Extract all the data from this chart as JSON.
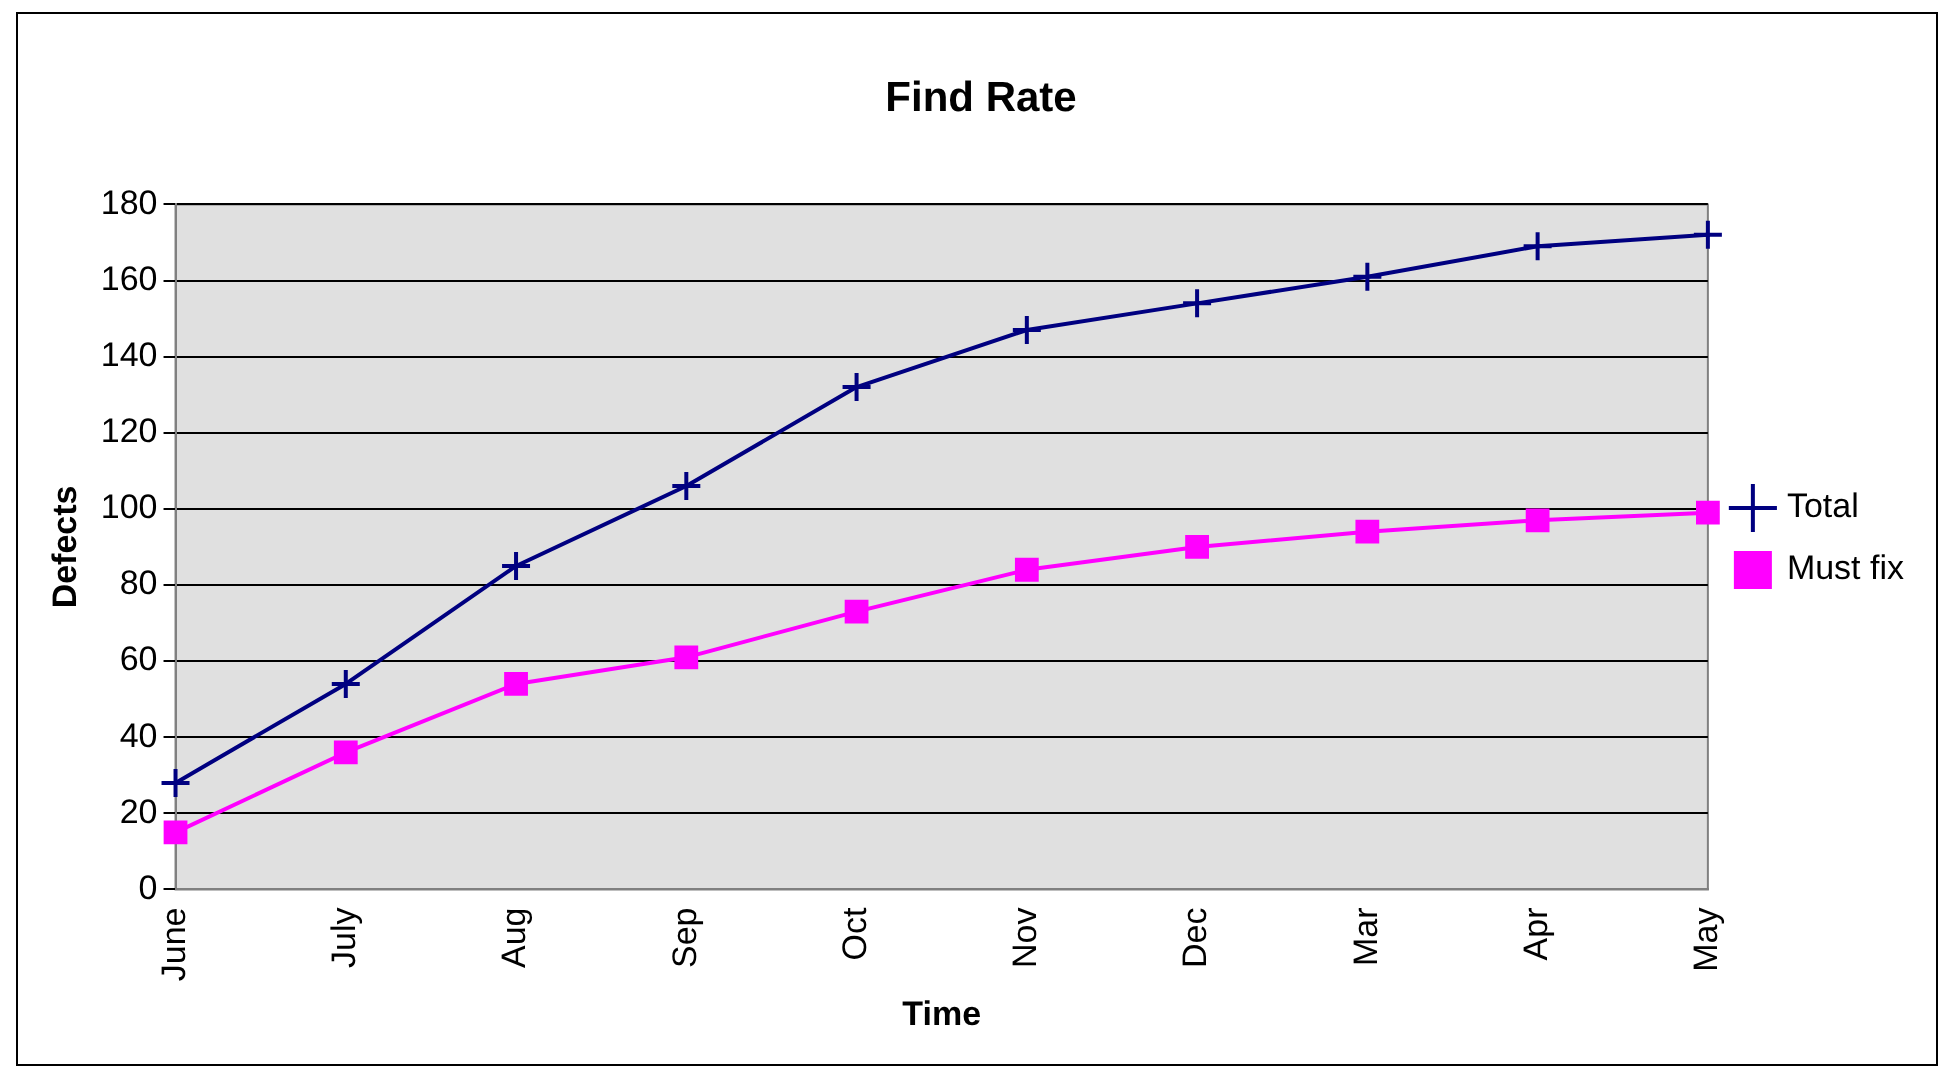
{
  "chart_data": {
    "type": "line",
    "title": "Find Rate",
    "xlabel": "Time",
    "ylabel": "Defects",
    "categories": [
      "June",
      "July",
      "Aug",
      "Sep",
      "Oct",
      "Nov",
      "Dec",
      "Mar",
      "Apr",
      "May"
    ],
    "series": [
      {
        "name": "Total",
        "color": "#000080",
        "marker": "cross",
        "values": [
          28,
          54,
          85,
          106,
          132,
          147,
          154,
          161,
          169,
          172
        ]
      },
      {
        "name": "Must fix",
        "color": "#ff00ff",
        "marker": "square",
        "values": [
          15,
          36,
          54,
          61,
          73,
          84,
          90,
          94,
          97,
          99
        ]
      }
    ],
    "ylim": [
      0,
      180
    ],
    "yticks": [
      0,
      20,
      40,
      60,
      80,
      100,
      120,
      140,
      160,
      180
    ],
    "grid": "y",
    "legend": "right",
    "line_style": "solid"
  }
}
